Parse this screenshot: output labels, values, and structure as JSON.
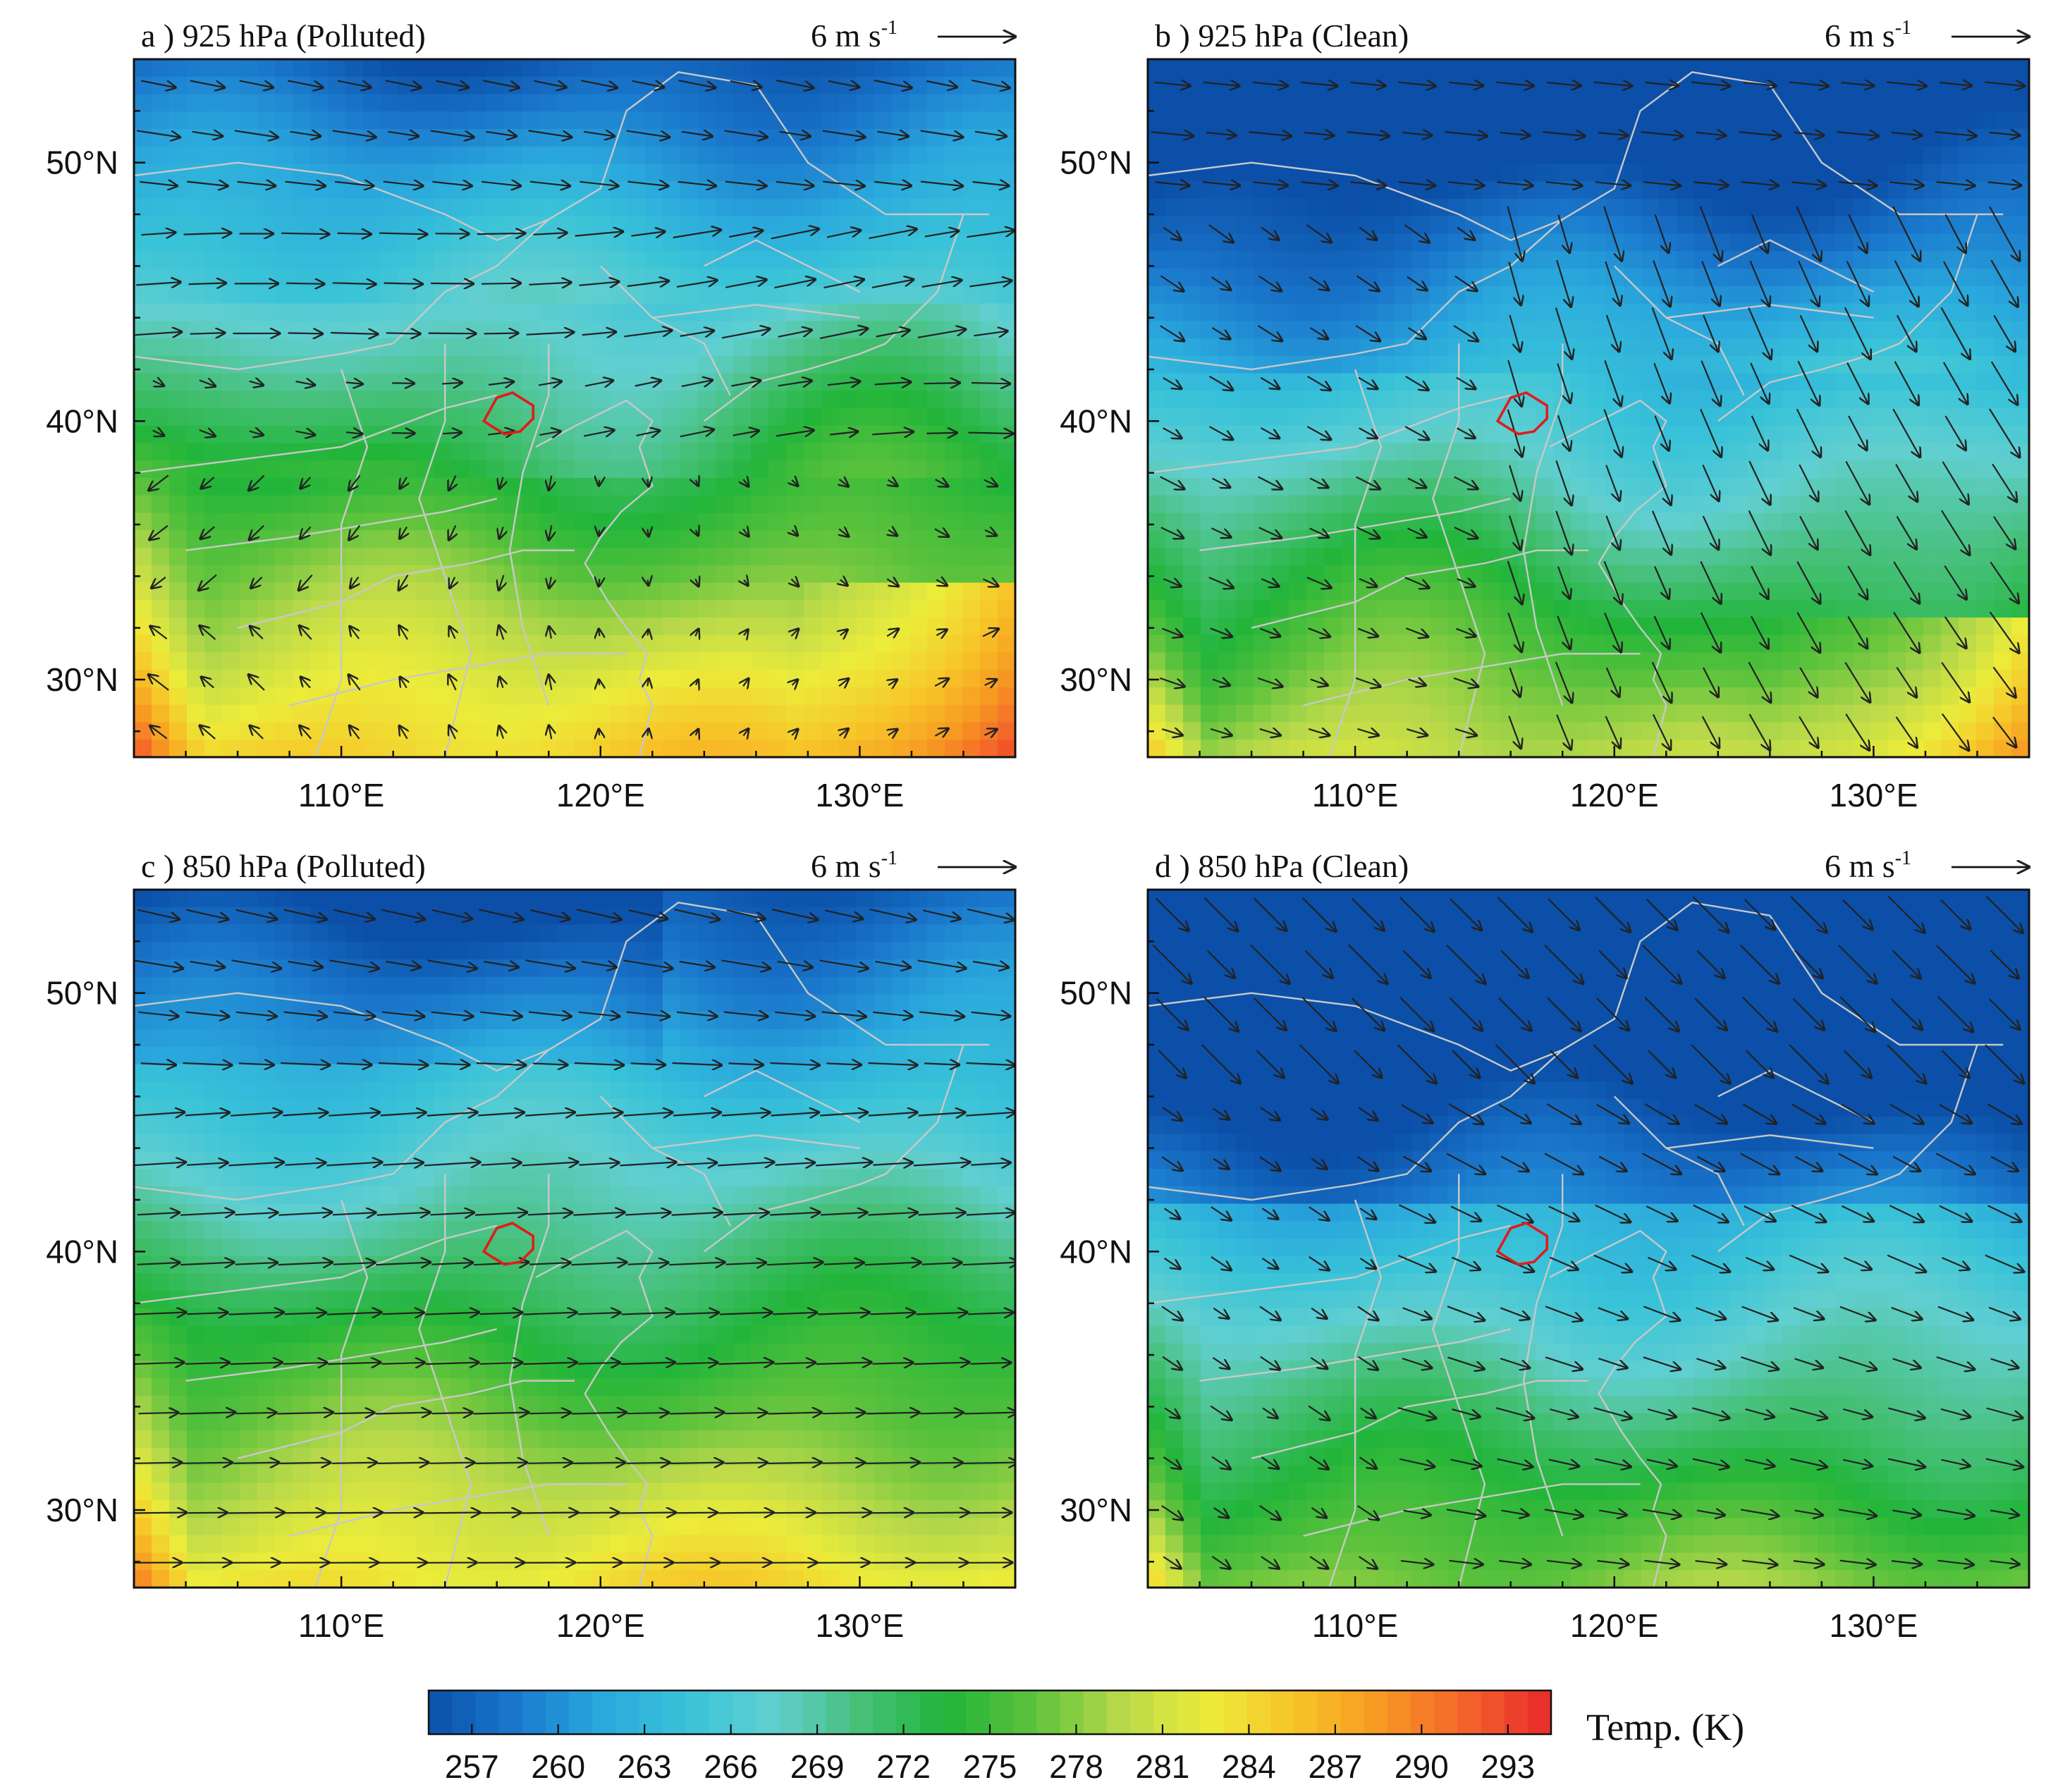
{
  "panels": [
    {
      "id": "a",
      "title": "a ) 925 hPa (Polluted)",
      "scale_label": "6 m s",
      "scale_sup": "-1",
      "regime": "polluted-925",
      "y_ticks": [
        "50°N",
        "40°N",
        "30°N"
      ],
      "x_ticks": [
        "110°E",
        "120°E",
        "130°E"
      ]
    },
    {
      "id": "b",
      "title": "b ) 925 hPa (Clean)",
      "scale_label": "6 m s",
      "scale_sup": "-1",
      "regime": "clean-925",
      "y_ticks": [
        "50°N",
        "40°N",
        "30°N"
      ],
      "x_ticks": [
        "110°E",
        "120°E",
        "130°E"
      ]
    },
    {
      "id": "c",
      "title": "c ) 850 hPa (Polluted)",
      "scale_label": "6 m s",
      "scale_sup": "-1",
      "regime": "polluted-850",
      "y_ticks": [
        "50°N",
        "40°N",
        "30°N"
      ],
      "x_ticks": [
        "110°E",
        "120°E",
        "130°E"
      ]
    },
    {
      "id": "d",
      "title": "d ) 850 hPa (Clean)",
      "scale_label": "6 m s",
      "scale_sup": "-1",
      "regime": "clean-850",
      "y_ticks": [
        "50°N",
        "40°N",
        "30°N"
      ],
      "x_ticks": [
        "110°E",
        "120°E",
        "130°E"
      ]
    }
  ],
  "colorbar": {
    "label": "Temp. (K)",
    "ticks": [
      "257",
      "260",
      "263",
      "266",
      "269",
      "272",
      "275",
      "278",
      "281",
      "284",
      "287",
      "290",
      "293"
    ],
    "stops": [
      "#0b4fa8",
      "#1a78cc",
      "#2aa8dd",
      "#39c3d8",
      "#61cfd0",
      "#46c078",
      "#22b53a",
      "#5cc23c",
      "#b6d84a",
      "#ecec3a",
      "#f7c528",
      "#f79a22",
      "#f4642a",
      "#e8282a"
    ]
  },
  "colors": {
    "wind_arrow": "#222222",
    "boundary": "#c8c8c8",
    "beijing_outline": "#e11b1b",
    "frame": "#111111"
  },
  "legend_icons": [
    "reference-arrow-icon",
    "beijing-outline-icon"
  ]
}
